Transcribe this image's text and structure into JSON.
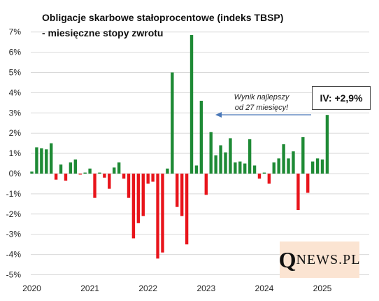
{
  "title": {
    "line1": "Obligacje skarbowe stałoprocentowe (indeks TBSP)",
    "line2": "- miesięczne stopy zwrotu"
  },
  "callout": {
    "label": "IV: +2,9%"
  },
  "annotation": {
    "line1": "Wynik najlepszy",
    "line2": "od 27 miesięcy!"
  },
  "logo": {
    "q": "Q",
    "rest": "NEWS.PL"
  },
  "colors": {
    "positive": "#1e8a35",
    "negative": "#e8141b",
    "grid": "#d9d9d9",
    "arrow": "#4a78b8"
  },
  "chart_data": {
    "type": "bar",
    "ylim": [
      -5,
      7
    ],
    "y_ticks": [
      "-5%",
      "-4%",
      "-3%",
      "-2%",
      "-1%",
      "0%",
      "1%",
      "2%",
      "3%",
      "4%",
      "5%",
      "6%",
      "7%"
    ],
    "x_ticks": [
      "2020",
      "2021",
      "2022",
      "2023",
      "2024",
      "2025"
    ],
    "grid": true,
    "series": [
      {
        "values": [
          0.1,
          1.3,
          1.25,
          1.2,
          1.5,
          -0.3,
          0.45,
          -0.35,
          0.55,
          0.7,
          -0.05,
          0.05,
          0.25,
          -1.2,
          0.05,
          -0.2,
          -0.75,
          0.3,
          0.55,
          -0.25,
          -1.2,
          -3.2,
          -2.45,
          -2.1,
          -0.5,
          -0.4,
          -4.2,
          -3.9,
          0.25,
          5.0,
          -1.65,
          -2.1,
          -3.5,
          6.85,
          0.4,
          3.6,
          -1.05,
          2.05,
          0.9,
          1.4,
          1.05,
          1.75,
          0.55,
          0.6,
          0.5,
          1.7,
          0.4,
          -0.25,
          0.05,
          -0.5,
          0.55,
          0.75,
          1.45,
          0.75,
          1.1,
          -1.8,
          1.8,
          -0.95,
          0.6,
          0.75,
          0.7,
          2.9
        ]
      }
    ]
  }
}
